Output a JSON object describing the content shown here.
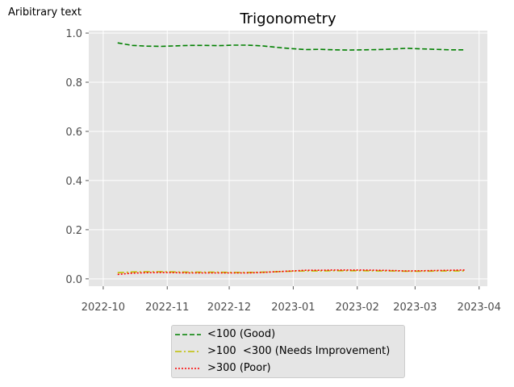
{
  "corner_note": "Aribitrary text",
  "chart_data": {
    "type": "line",
    "title": "Trigonometry",
    "xlabel": "",
    "ylabel": "",
    "x_tick_labels": [
      "2022-10",
      "2022-11",
      "2022-12",
      "2023-01",
      "2023-02",
      "2023-03",
      "2023-04"
    ],
    "x_ticks": [
      "2022-10-01",
      "2022-11-01",
      "2022-12-01",
      "2023-01-01",
      "2023-02-01",
      "2023-03-01",
      "2023-04-01"
    ],
    "xlim": [
      "2022-09-24",
      "2023-04-05"
    ],
    "y_tick_labels": [
      "0.0",
      "0.2",
      "0.4",
      "0.6",
      "0.8",
      "1.0"
    ],
    "y_ticks": [
      0.0,
      0.2,
      0.4,
      0.6,
      0.8,
      1.0
    ],
    "ylim": [
      -0.03,
      1.01
    ],
    "grid": true,
    "legend_position": "below",
    "x": [
      "2022-10-08",
      "2022-10-15",
      "2022-10-22",
      "2022-10-29",
      "2022-11-05",
      "2022-11-12",
      "2022-11-19",
      "2022-11-26",
      "2022-12-03",
      "2022-12-10",
      "2022-12-17",
      "2022-12-24",
      "2022-12-31",
      "2023-01-07",
      "2023-01-14",
      "2023-01-21",
      "2023-01-28",
      "2023-02-04",
      "2023-02-11",
      "2023-02-18",
      "2023-02-25",
      "2023-03-04",
      "2023-03-11",
      "2023-03-18",
      "2023-03-25"
    ],
    "series": [
      {
        "name": "<100 (Good)",
        "color": "#008000",
        "dash": "dashed",
        "values": [
          0.96,
          0.95,
          0.947,
          0.946,
          0.948,
          0.95,
          0.95,
          0.949,
          0.951,
          0.951,
          0.948,
          0.942,
          0.937,
          0.933,
          0.934,
          0.932,
          0.931,
          0.932,
          0.933,
          0.935,
          0.938,
          0.936,
          0.934,
          0.932,
          0.932
        ]
      },
      {
        "name": ">100  <300 (Needs Improvement)",
        "color": "#bfbf00",
        "dash": "dashdot",
        "values": [
          0.025,
          0.028,
          0.029,
          0.029,
          0.028,
          0.027,
          0.027,
          0.027,
          0.026,
          0.026,
          0.027,
          0.029,
          0.031,
          0.032,
          0.032,
          0.033,
          0.033,
          0.033,
          0.032,
          0.032,
          0.031,
          0.031,
          0.032,
          0.032,
          0.032
        ]
      },
      {
        "name": ">300 (Poor)",
        "color": "#ff0000",
        "dash": "dotted",
        "values": [
          0.018,
          0.023,
          0.025,
          0.026,
          0.025,
          0.024,
          0.024,
          0.024,
          0.024,
          0.024,
          0.026,
          0.029,
          0.032,
          0.035,
          0.035,
          0.036,
          0.036,
          0.036,
          0.035,
          0.034,
          0.032,
          0.033,
          0.034,
          0.035,
          0.036
        ]
      }
    ]
  }
}
